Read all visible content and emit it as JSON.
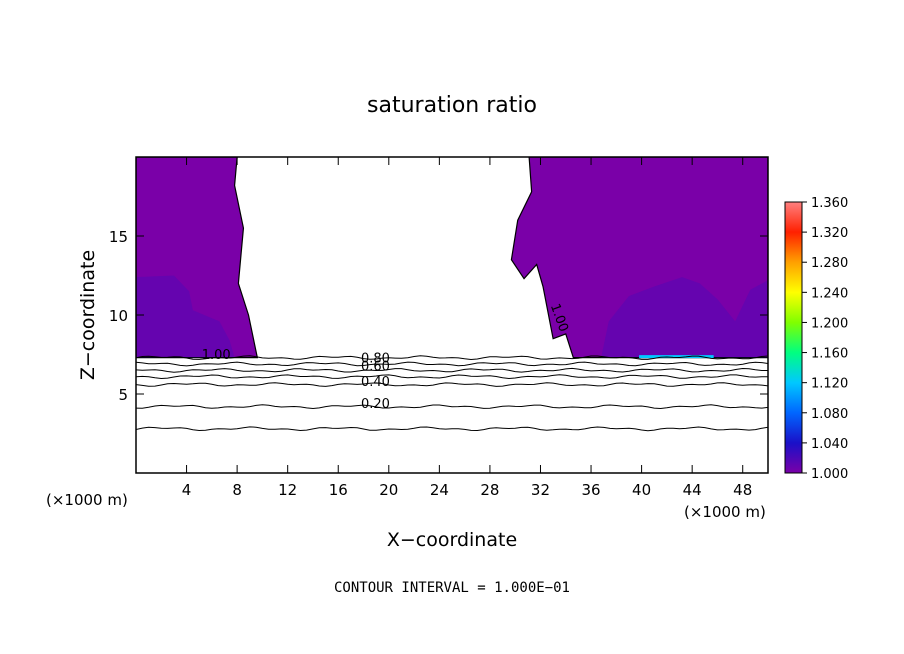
{
  "chart_data": {
    "type": "heatmap",
    "title": "saturation ratio",
    "xlabel": "X−coordinate",
    "ylabel": "Z−coordinate",
    "x_unit_left": "(×1000 m)",
    "x_unit_right": "(×1000 m)",
    "xlim": [
      0,
      50
    ],
    "ylim": [
      0,
      20
    ],
    "x_ticks": [
      4,
      8,
      12,
      16,
      20,
      24,
      28,
      32,
      36,
      40,
      44,
      48
    ],
    "y_ticks": [
      5,
      10,
      15
    ],
    "colorbar": {
      "min": 1.0,
      "max": 1.36,
      "ticks": [
        "1.000",
        "1.040",
        "1.080",
        "1.120",
        "1.160",
        "1.200",
        "1.240",
        "1.280",
        "1.320",
        "1.360"
      ],
      "colors": [
        "#7a00a8",
        "#1a10c8",
        "#0066ff",
        "#00c8ff",
        "#00ff80",
        "#80ff00",
        "#ffff00",
        "#ffa000",
        "#ff2000",
        "#ff8080"
      ]
    },
    "contour_labels": [
      {
        "text": "1.00",
        "x": 5.2,
        "z": 7.2
      },
      {
        "text": "1.00",
        "x": 32.8,
        "z": 10.6,
        "rotate": 70
      },
      {
        "text": "0.80",
        "x": 17.8,
        "z": 7.0
      },
      {
        "text": "0.60",
        "x": 17.8,
        "z": 6.5
      },
      {
        "text": "0.40",
        "x": 17.8,
        "z": 5.5
      },
      {
        "text": "0.20",
        "x": 17.8,
        "z": 4.1
      }
    ],
    "contour_levels_below_cloud": [
      7.3,
      6.9,
      6.5,
      6.1,
      5.6,
      4.2,
      2.8
    ],
    "supersaturated_region_left_boundary": [
      [
        8.0,
        20.0
      ],
      [
        7.8,
        18.2
      ],
      [
        8.5,
        15.5
      ],
      [
        8.1,
        12.0
      ],
      [
        8.9,
        10.0
      ],
      [
        9.6,
        7.3
      ]
    ],
    "supersaturated_region_right_boundary": [
      [
        31.1,
        20.0
      ],
      [
        31.3,
        17.8
      ],
      [
        30.2,
        16.0
      ],
      [
        29.7,
        13.5
      ],
      [
        30.7,
        12.3
      ],
      [
        31.7,
        13.2
      ],
      [
        32.2,
        11.8
      ],
      [
        33.0,
        8.5
      ],
      [
        34.0,
        8.8
      ],
      [
        34.6,
        7.3
      ]
    ],
    "max_value_strip": {
      "x": [
        39.8,
        45.7
      ],
      "z": 7.3,
      "value": 1.08
    },
    "note": "CONTOUR INTERVAL =  1.000E−01"
  }
}
